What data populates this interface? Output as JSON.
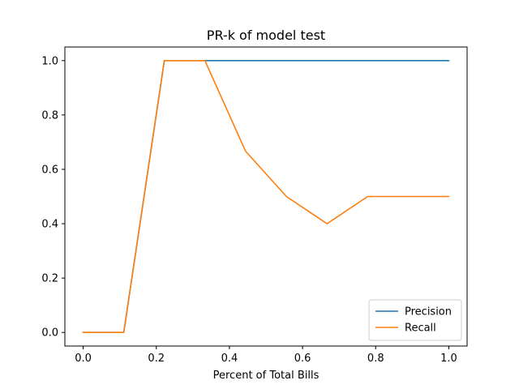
{
  "chart_data": {
    "type": "line",
    "title": "PR-k of model test",
    "xlabel": "Percent of Total Bills",
    "ylabel": "",
    "xlim": [
      -0.05,
      1.05
    ],
    "ylim": [
      -0.05,
      1.05
    ],
    "xticks": [
      0.0,
      0.2,
      0.4,
      0.6,
      0.8,
      1.0
    ],
    "xtick_labels": [
      "0.0",
      "0.2",
      "0.4",
      "0.6",
      "0.8",
      "1.0"
    ],
    "yticks": [
      0.0,
      0.2,
      0.4,
      0.6,
      0.8,
      1.0
    ],
    "ytick_labels": [
      "0.0",
      "0.2",
      "0.4",
      "0.6",
      "0.8",
      "1.0"
    ],
    "grid": false,
    "legend_position": "lower-right",
    "x": [
      0.0,
      0.111,
      0.222,
      0.333,
      0.444,
      0.556,
      0.667,
      0.778,
      0.889,
      1.0
    ],
    "series": [
      {
        "name": "Precision",
        "color": "#1f77b4",
        "values": [
          0.0,
          0.0,
          1.0,
          1.0,
          1.0,
          1.0,
          1.0,
          1.0,
          1.0,
          1.0
        ]
      },
      {
        "name": "Recall",
        "color": "#ff7f0e",
        "values": [
          0.0,
          0.0,
          1.0,
          1.0,
          0.667,
          0.5,
          0.4,
          0.5,
          0.5,
          0.5
        ]
      }
    ]
  }
}
